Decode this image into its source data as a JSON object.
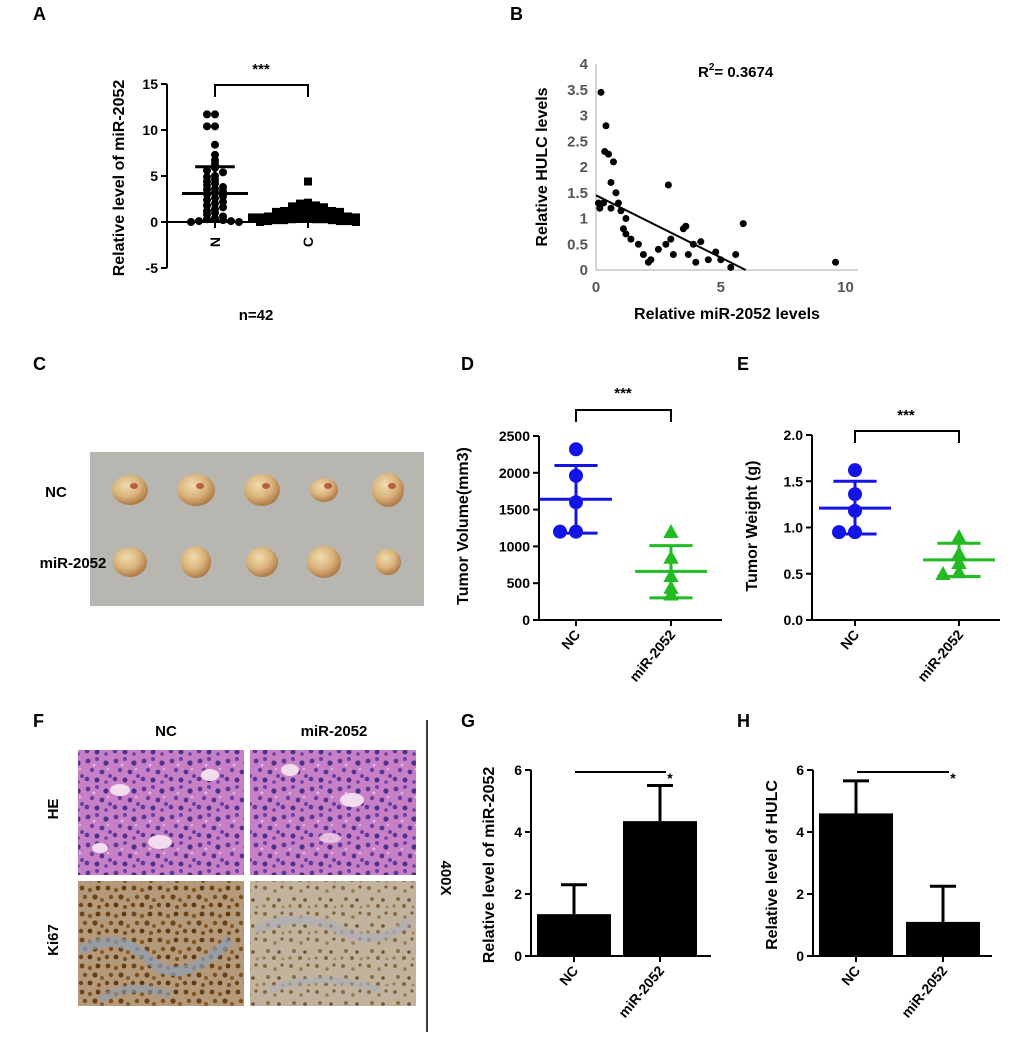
{
  "panels": {
    "A": "A",
    "B": "B",
    "C": "C",
    "D": "D",
    "E": "E",
    "F": "F",
    "G": "G",
    "H": "H"
  },
  "chart_data": [
    {
      "id": "A",
      "type": "scatter",
      "ylabel": "Relative level of miR-2052",
      "categories": [
        "N",
        "C"
      ],
      "yticks": [
        -5,
        0,
        5,
        10,
        15
      ],
      "ylim": [
        -5,
        15
      ],
      "footnote": "n=42",
      "significance": "***",
      "series": [
        {
          "category": "N",
          "mean": 3.1,
          "sd_low": 0.1,
          "sd_high": 6.0,
          "values": [
            11.7,
            11.7,
            10.4,
            10.4,
            8.4,
            7.3,
            6.7,
            6.3,
            5.9,
            5.6,
            5.4,
            5.0,
            4.9,
            4.6,
            4.4,
            4.2,
            4.0,
            3.8,
            3.6,
            3.5,
            3.4,
            3.2,
            3.0,
            2.8,
            2.6,
            2.4,
            2.2,
            2.0,
            1.8,
            1.6,
            1.4,
            1.2,
            1.0,
            0.8,
            0.6,
            0.4,
            0.3,
            0.2,
            0.1,
            0.1,
            0.0,
            0.0
          ]
        },
        {
          "category": "C",
          "mean": 0.8,
          "sd_low": 0.1,
          "sd_high": 1.5,
          "values": [
            4.4,
            2.1,
            2.0,
            1.8,
            1.7,
            1.6,
            1.5,
            1.4,
            1.4,
            1.3,
            1.3,
            1.2,
            1.2,
            1.1,
            1.1,
            1.0,
            1.0,
            0.9,
            0.9,
            0.8,
            0.8,
            0.8,
            0.7,
            0.7,
            0.6,
            0.6,
            0.5,
            0.5,
            0.5,
            0.4,
            0.4,
            0.3,
            0.3,
            0.3,
            0.2,
            0.2,
            0.2,
            0.1,
            0.1,
            0.1,
            0.0,
            0.0
          ]
        }
      ]
    },
    {
      "id": "B",
      "type": "scatter",
      "xlabel": "Relative miR-2052 levels",
      "ylabel": "Relative HULC levels",
      "annotation_r": "R",
      "annotation_sup": "2",
      "annotation_val": "= 0.3674",
      "xticks": [
        0,
        5,
        10
      ],
      "yticks": [
        0,
        0.5,
        1,
        1.5,
        2,
        2.5,
        3,
        3.5,
        4
      ],
      "xlim": [
        0,
        10.5
      ],
      "ylim": [
        0,
        4
      ],
      "fit_line": [
        [
          0,
          1.45
        ],
        [
          6,
          0
        ]
      ],
      "points": [
        [
          0.1,
          1.3
        ],
        [
          0.15,
          1.2
        ],
        [
          0.2,
          3.45
        ],
        [
          0.3,
          1.3
        ],
        [
          0.35,
          2.3
        ],
        [
          0.4,
          2.8
        ],
        [
          0.5,
          2.25
        ],
        [
          0.6,
          1.2
        ],
        [
          0.6,
          1.7
        ],
        [
          0.7,
          2.1
        ],
        [
          0.8,
          1.5
        ],
        [
          0.9,
          1.3
        ],
        [
          1.0,
          1.15
        ],
        [
          1.1,
          0.8
        ],
        [
          1.2,
          1.0
        ],
        [
          1.2,
          0.7
        ],
        [
          1.4,
          0.6
        ],
        [
          1.7,
          0.5
        ],
        [
          1.9,
          0.3
        ],
        [
          2.1,
          0.15
        ],
        [
          2.2,
          0.2
        ],
        [
          2.5,
          0.4
        ],
        [
          2.8,
          0.5
        ],
        [
          2.9,
          1.65
        ],
        [
          3.0,
          0.6
        ],
        [
          3.1,
          0.3
        ],
        [
          3.5,
          0.8
        ],
        [
          3.6,
          0.85
        ],
        [
          3.7,
          0.3
        ],
        [
          3.9,
          0.5
        ],
        [
          4.0,
          0.15
        ],
        [
          4.2,
          0.55
        ],
        [
          4.5,
          0.2
        ],
        [
          4.8,
          0.35
        ],
        [
          5.0,
          0.2
        ],
        [
          5.4,
          0.05
        ],
        [
          5.6,
          0.3
        ],
        [
          5.9,
          0.9
        ],
        [
          9.6,
          0.15
        ]
      ]
    },
    {
      "id": "D",
      "type": "scatter",
      "ylabel": "Tumor Volume(mm3)",
      "categories": [
        "NC",
        "miR-2052"
      ],
      "yticks": [
        0,
        500,
        1000,
        1500,
        2000,
        2500
      ],
      "ylim": [
        0,
        2500
      ],
      "significance": "***",
      "series": [
        {
          "category": "NC",
          "color": "#1414e6",
          "marker": "circle",
          "mean": 1640,
          "sd_low": 1180,
          "sd_high": 2100,
          "values": [
            2320,
            1960,
            1600,
            1200,
            1200
          ]
        },
        {
          "category": "miR-2052",
          "color": "#22bb22",
          "marker": "triangle",
          "mean": 660,
          "sd_low": 300,
          "sd_high": 1010,
          "values": [
            1200,
            850,
            600,
            440,
            350
          ]
        }
      ]
    },
    {
      "id": "E",
      "type": "scatter",
      "ylabel": "Tumor Weight (g)",
      "categories": [
        "NC",
        "miR-2052"
      ],
      "yticks": [
        0.0,
        0.5,
        1.0,
        1.5,
        2.0
      ],
      "ylim": [
        0,
        2
      ],
      "significance": "***",
      "series": [
        {
          "category": "NC",
          "color": "#1414e6",
          "marker": "circle",
          "mean": 1.21,
          "sd_low": 0.93,
          "sd_high": 1.5,
          "values": [
            1.62,
            1.36,
            1.18,
            0.95,
            0.95
          ]
        },
        {
          "category": "miR-2052",
          "color": "#22bb22",
          "marker": "triangle",
          "mean": 0.65,
          "sd_low": 0.47,
          "sd_high": 0.83,
          "values": [
            0.9,
            0.72,
            0.62,
            0.52,
            0.5
          ]
        }
      ]
    },
    {
      "id": "G",
      "type": "bar",
      "ylabel": "Relative level of miR-2052",
      "categories": [
        "NC",
        "miR-2052"
      ],
      "values": [
        1.35,
        4.35
      ],
      "errors": [
        0.95,
        1.15
      ],
      "yticks": [
        0,
        2,
        4,
        6
      ],
      "ylim": [
        0,
        6
      ],
      "significance": "*"
    },
    {
      "id": "H",
      "type": "bar",
      "ylabel": "Relative level of HULC",
      "categories": [
        "NC",
        "miR-2052"
      ],
      "values": [
        4.6,
        1.1
      ],
      "errors": [
        1.05,
        1.15
      ],
      "yticks": [
        0,
        2,
        4,
        6
      ],
      "ylim": [
        0,
        6
      ],
      "significance": "*"
    }
  ],
  "photo_c": {
    "row1": "NC",
    "row2": "miR-2052"
  },
  "histology_f": {
    "col1": "NC",
    "col2": "miR-2052",
    "row1": "HE",
    "row2": "Ki67",
    "magnification": "400X"
  }
}
